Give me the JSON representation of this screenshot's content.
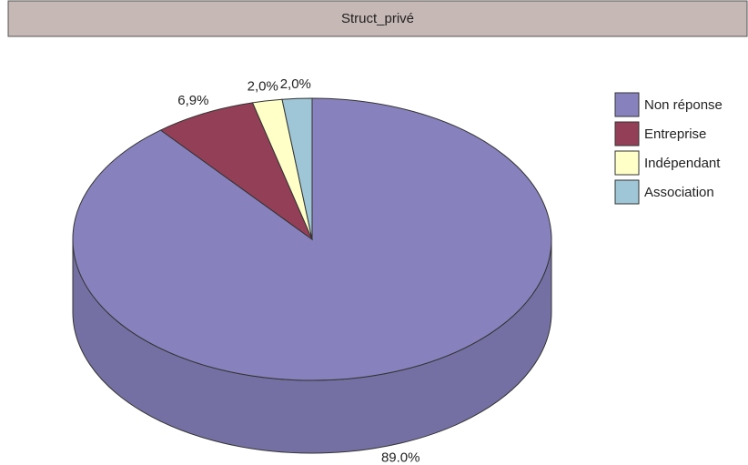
{
  "chart_data": {
    "type": "pie",
    "title": "Struct_privé",
    "categories": [
      "Non réponse",
      "Entreprise",
      "Indépendant",
      "Association"
    ],
    "values": [
      89.0,
      6.9,
      2.0,
      2.0
    ],
    "value_labels": [
      "89.0%",
      "6,9%",
      "2,0%",
      "2,0%"
    ],
    "colors": [
      "#8782bd",
      "#933f58",
      "#ffffc8",
      "#9fc6d6"
    ],
    "legend": "right"
  }
}
